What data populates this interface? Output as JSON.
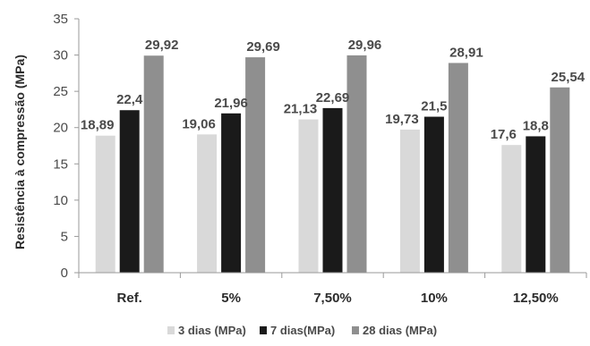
{
  "chart_data": {
    "type": "bar",
    "title": "",
    "xlabel": "",
    "ylabel": "Resistência à compressão (MPa)",
    "ylim": [
      0,
      35
    ],
    "yticks": [
      0,
      5,
      10,
      15,
      20,
      25,
      30,
      35
    ],
    "ytick_labels": [
      "0",
      "5",
      "10",
      "15",
      "20",
      "25",
      "30",
      "35"
    ],
    "grid": false,
    "legend_position": "bottom",
    "categories": [
      "Ref.",
      "5%",
      "7,50%",
      "10%",
      "12,50%"
    ],
    "series": [
      {
        "name": "3 dias (MPa)",
        "color": "#d9d9d9",
        "values": [
          18.89,
          19.06,
          21.13,
          19.73,
          17.6
        ],
        "labels": [
          "18,89",
          "19,06",
          "21,13",
          "19,73",
          "17,6"
        ]
      },
      {
        "name": "7 dias(MPa)",
        "color": "#1a1a1a",
        "values": [
          22.4,
          21.96,
          22.69,
          21.5,
          18.8
        ],
        "labels": [
          "22,4",
          "21,96",
          "22,69",
          "21,5",
          "18,8"
        ]
      },
      {
        "name": "28 dias (MPa)",
        "color": "#8f8f8f",
        "values": [
          29.92,
          29.69,
          29.96,
          28.91,
          25.54
        ],
        "labels": [
          "29,92",
          "29,69",
          "29,96",
          "28,91",
          "25,54"
        ]
      }
    ]
  }
}
